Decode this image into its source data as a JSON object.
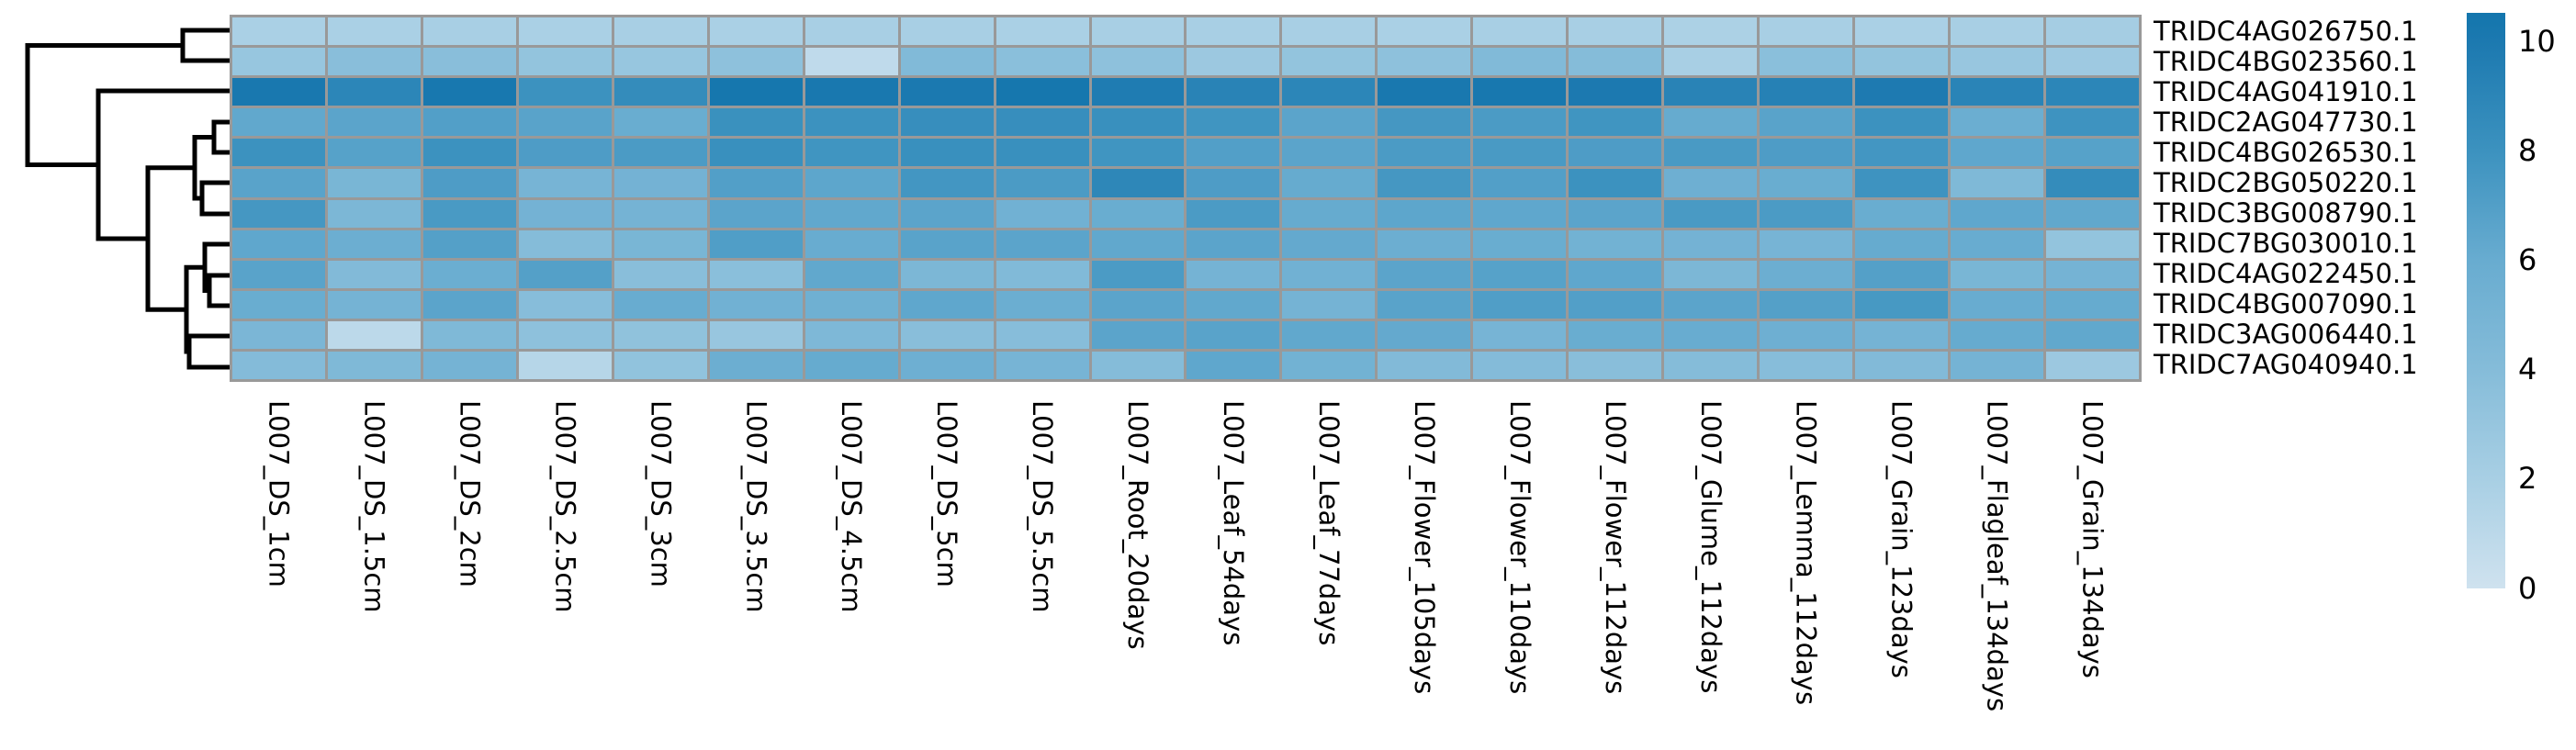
{
  "chart_data": {
    "type": "heatmap",
    "title": "",
    "rows": [
      "TRIDC4AG026750.1",
      "TRIDC4BG023560.1",
      "TRIDC4AG041910.1",
      "TRIDC2AG047730.1",
      "TRIDC4BG026530.1",
      "TRIDC2BG050220.1",
      "TRIDC3BG008790.1",
      "TRIDC7BG030010.1",
      "TRIDC4AG022450.1",
      "TRIDC4BG007090.1",
      "TRIDC3AG006440.1",
      "TRIDC7AG040940.1"
    ],
    "columns": [
      "L007_DS_1cm",
      "L007_DS_1.5cm",
      "L007_DS_2cm",
      "L007_DS_2.5cm",
      "L007_DS_3cm",
      "L007_DS_3.5cm",
      "L007_DS_4.5cm",
      "L007_DS_5cm",
      "L007_DS_5.5cm",
      "L007_Root_20days",
      "L007_Leaf_54days",
      "L007_Leaf_77days",
      "L007_Flower_105days",
      "L007_Flower_110days",
      "L007_Flower_112days",
      "L007_Glume_112days",
      "L007_Lemma_112days",
      "L007_Grain_123days",
      "L007_Flagleaf_134days",
      "L007_Grain_134days"
    ],
    "values": [
      [
        1.9,
        1.9,
        2.0,
        1.9,
        2.0,
        1.9,
        2.0,
        2.0,
        1.9,
        2.0,
        2.0,
        2.0,
        1.9,
        2.0,
        2.0,
        1.8,
        2.0,
        1.9,
        2.0,
        2.2
      ],
      [
        3.0,
        3.8,
        3.8,
        3.2,
        3.0,
        3.5,
        0.8,
        4.3,
        3.7,
        3.5,
        2.7,
        3.2,
        3.5,
        4.3,
        4.0,
        2.0,
        3.7,
        3.2,
        2.9,
        2.6
      ],
      [
        10.2,
        9.0,
        10.3,
        8.0,
        8.5,
        10.4,
        10.2,
        10.1,
        10.4,
        9.8,
        9.2,
        9.0,
        10.2,
        10.3,
        10.0,
        9.2,
        9.4,
        9.9,
        9.1,
        9.0
      ],
      [
        6.3,
        6.6,
        7.0,
        6.7,
        5.9,
        8.1,
        8.0,
        8.3,
        8.3,
        8.2,
        7.8,
        6.6,
        7.6,
        7.3,
        7.8,
        6.1,
        6.7,
        8.0,
        5.8,
        7.9
      ],
      [
        8.0,
        6.8,
        8.0,
        7.2,
        7.3,
        8.2,
        7.8,
        8.2,
        8.2,
        7.8,
        7.0,
        6.6,
        7.3,
        7.4,
        7.2,
        7.4,
        7.2,
        7.7,
        6.4,
        6.8
      ],
      [
        6.7,
        4.8,
        7.2,
        5.0,
        5.2,
        7.0,
        6.5,
        7.7,
        7.3,
        8.9,
        7.2,
        6.1,
        7.6,
        7.0,
        8.0,
        5.6,
        5.9,
        7.9,
        4.4,
        8.5
      ],
      [
        7.6,
        4.6,
        7.4,
        5.2,
        5.1,
        6.6,
        6.3,
        6.6,
        5.4,
        5.9,
        7.3,
        6.1,
        6.5,
        6.4,
        6.6,
        7.4,
        7.3,
        5.9,
        6.4,
        6.3
      ],
      [
        6.4,
        5.7,
        6.9,
        4.0,
        4.8,
        7.1,
        6.0,
        6.7,
        6.6,
        6.3,
        6.6,
        6.2,
        5.7,
        5.9,
        5.3,
        5.2,
        5.0,
        6.1,
        6.0,
        3.2
      ],
      [
        6.7,
        4.2,
        5.8,
        6.9,
        3.8,
        3.7,
        6.3,
        4.6,
        4.3,
        7.3,
        5.1,
        5.4,
        6.6,
        6.8,
        6.4,
        4.6,
        5.7,
        6.9,
        4.8,
        5.1
      ],
      [
        5.9,
        5.1,
        6.6,
        3.9,
        6.0,
        5.4,
        5.5,
        6.4,
        5.8,
        6.6,
        6.3,
        5.1,
        6.7,
        7.1,
        7.0,
        6.6,
        6.9,
        7.5,
        6.0,
        6.1
      ],
      [
        4.7,
        1.0,
        4.4,
        3.5,
        3.4,
        2.9,
        4.5,
        3.8,
        3.9,
        6.6,
        6.7,
        6.3,
        6.2,
        5.0,
        5.9,
        6.0,
        5.6,
        5.1,
        6.1,
        6.3
      ],
      [
        4.1,
        4.4,
        5.1,
        1.3,
        3.3,
        5.7,
        6.1,
        5.6,
        5.0,
        4.0,
        6.4,
        5.3,
        4.2,
        4.1,
        3.8,
        4.0,
        3.9,
        4.2,
        5.1,
        2.7
      ]
    ],
    "vmin": 0,
    "vmax": 10.53,
    "grid_on": true,
    "grid_color": "#999999",
    "colorbar": {
      "position": "right",
      "ticks": [
        10,
        8,
        6,
        4,
        2,
        0
      ]
    },
    "colormap_stops": [
      {
        "value": 0,
        "rgb": [
          207,
          226,
          239
        ]
      },
      {
        "value": 2,
        "rgb": [
          168,
          207,
          228
        ]
      },
      {
        "value": 4,
        "rgb": [
          133,
          188,
          217
        ]
      },
      {
        "value": 6,
        "rgb": [
          104,
          172,
          208
        ]
      },
      {
        "value": 8,
        "rgb": [
          60,
          146,
          191
        ]
      },
      {
        "value": 10,
        "rgb": [
          28,
          121,
          176
        ]
      },
      {
        "value": 10.62,
        "rgb": [
          19,
          118,
          173
        ]
      }
    ],
    "dendrogram": {
      "orientation": "left",
      "line_color": "#000000",
      "line_width": 5,
      "polylines": [
        {
          "name": "node-rows1-2",
          "points": [
            [
              250,
              33
            ],
            [
              199,
              33
            ],
            [
              199,
              66
            ],
            [
              250,
              66
            ]
          ]
        },
        {
          "name": "root",
          "points": [
            [
              199,
              49.5
            ],
            [
              30,
              49.5
            ],
            [
              30,
              179.5
            ],
            [
              107,
              179.5
            ]
          ]
        },
        {
          "name": "node-row3-rest",
          "points": [
            [
              250,
              99
            ],
            [
              107,
              99
            ],
            [
              107,
              260
            ],
            [
              161,
              260
            ]
          ]
        },
        {
          "name": "node-rows4-12",
          "points": [
            [
              212,
              182.8
            ],
            [
              161,
              182.8
            ],
            [
              161,
              337.2
            ],
            [
              203,
              337.2
            ]
          ]
        },
        {
          "name": "node-rows4-7",
          "points": [
            [
              233,
              149.5
            ],
            [
              212,
              149.5
            ],
            [
              212,
              216
            ],
            [
              220,
              216
            ]
          ]
        },
        {
          "name": "node-rows4-5",
          "points": [
            [
              250,
              133
            ],
            [
              233,
              133
            ],
            [
              233,
              166
            ],
            [
              250,
              166
            ]
          ]
        },
        {
          "name": "node-rows6-7",
          "points": [
            [
              250,
              199
            ],
            [
              220,
              199
            ],
            [
              220,
              233
            ],
            [
              250,
              233
            ]
          ]
        },
        {
          "name": "node-rows8-12",
          "points": [
            [
              223,
              291.3
            ],
            [
              203,
              291.3
            ],
            [
              203,
              383
            ],
            [
              206,
              383
            ]
          ]
        },
        {
          "name": "node-rows8-10",
          "points": [
            [
              250,
              266
            ],
            [
              223,
              266
            ],
            [
              223,
              316.5
            ],
            [
              228,
              316.5
            ]
          ]
        },
        {
          "name": "node-rows9-10",
          "points": [
            [
              250,
              300
            ],
            [
              228,
              300
            ],
            [
              228,
              333
            ],
            [
              250,
              333
            ]
          ]
        },
        {
          "name": "node-rows11-12",
          "points": [
            [
              250,
              366
            ],
            [
              206,
              366
            ],
            [
              206,
              400
            ],
            [
              250,
              400
            ]
          ]
        }
      ]
    }
  }
}
